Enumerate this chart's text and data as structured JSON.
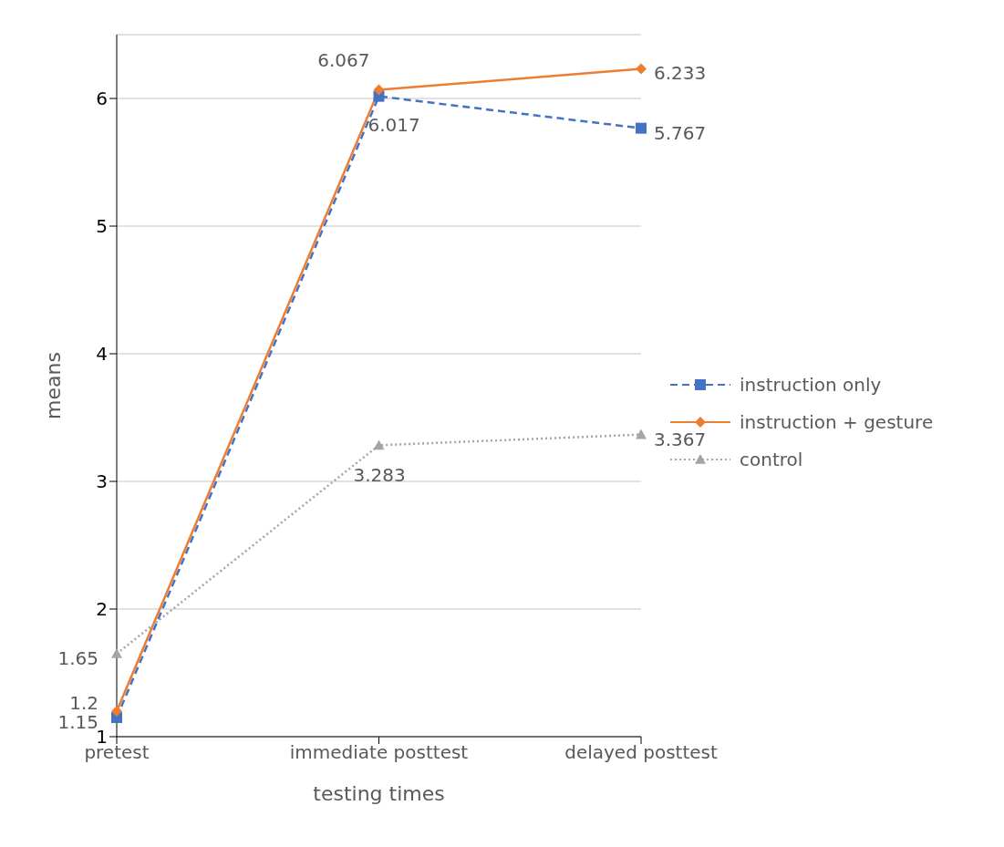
{
  "chart_data": {
    "type": "line",
    "xlabel": "testing times",
    "ylabel": "means",
    "categories": [
      "pretest",
      "immediate posttest",
      "delayed posttest"
    ],
    "series": [
      {
        "name": "instruction only",
        "color": "#4472c4",
        "values": [
          1.15,
          6.017,
          5.767
        ],
        "marker": "square",
        "line_style": "dashed"
      },
      {
        "name": "instruction + gesture",
        "color": "#ed7d31",
        "values": [
          1.2,
          6.067,
          6.233
        ],
        "marker": "diamond",
        "line_style": "solid"
      },
      {
        "name": "control",
        "color": "#a5a5a5",
        "values": [
          1.65,
          3.283,
          3.367
        ],
        "marker": "triangle",
        "line_style": "dotted"
      }
    ],
    "ylim": [
      1,
      6.5
    ],
    "yticks": [
      1,
      2,
      3,
      4,
      5,
      6
    ],
    "grid": "y",
    "legend": "right",
    "data_labels": true
  }
}
